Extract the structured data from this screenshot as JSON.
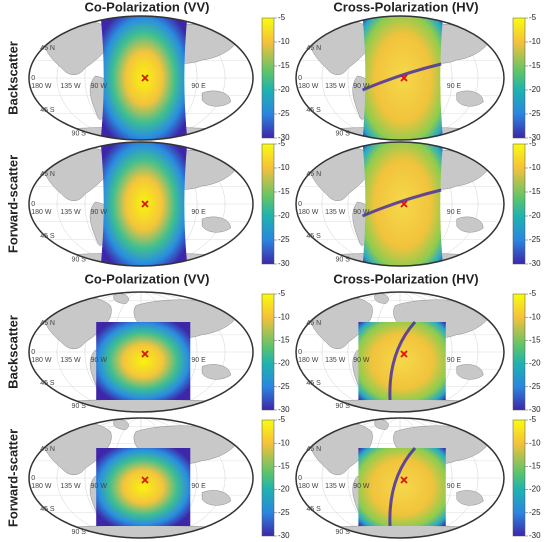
{
  "sections": [
    {
      "column_titles": [
        "Co-Polarization (VV)",
        "Cross-Polarization (HV)"
      ],
      "row_labels": [
        "Backscatter",
        "Forward-scatter"
      ]
    },
    {
      "column_titles": [
        "Co-Polarization (VV)",
        "Cross-Polarization (HV)"
      ],
      "row_labels": [
        "Backscatter",
        "Forward-scatter"
      ]
    }
  ],
  "map_labels": {
    "lat": [
      "45 N",
      "0",
      "45 S",
      "90 S"
    ],
    "lon": [
      "180 W",
      "135 W",
      "90 W",
      "90 E"
    ]
  },
  "colorbar": {
    "ticks": [
      -5,
      -10,
      -15,
      -20,
      -25,
      -30
    ]
  }
}
